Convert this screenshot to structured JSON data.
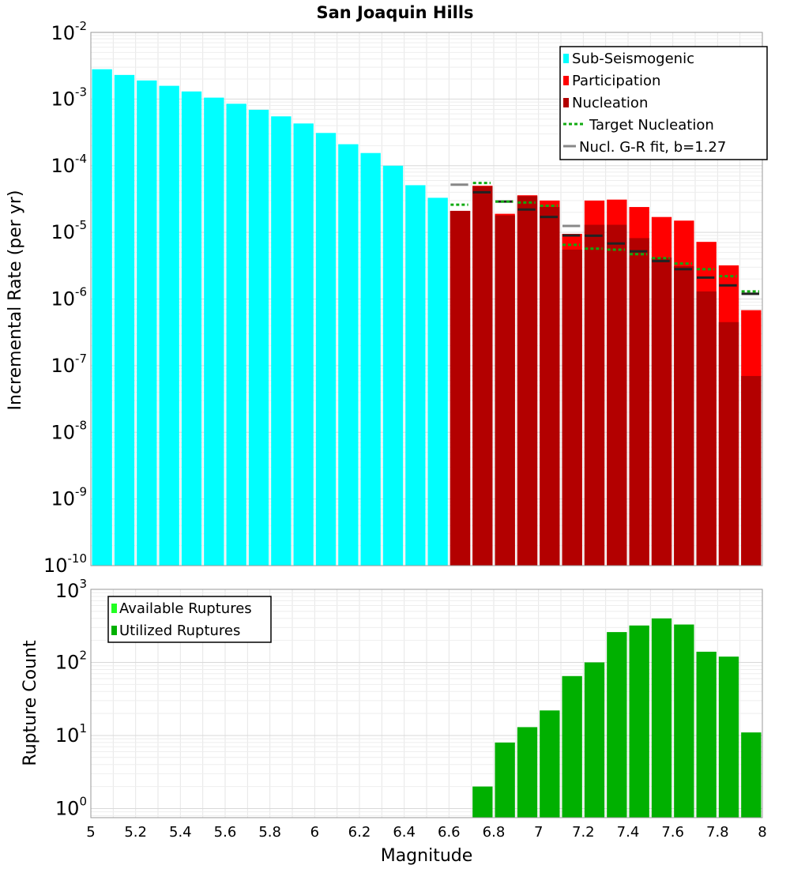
{
  "chart_data": [
    {
      "type": "bar",
      "title": "San Joaquin Hills",
      "ylabel": "Incremental Rate (per yr)",
      "xlim": [
        5,
        8
      ],
      "ylim": [
        1e-10,
        0.01
      ],
      "y_scale": "log",
      "y_ticks": [
        {
          "base": "10",
          "exp": "-2",
          "value": 0.01
        },
        {
          "base": "10",
          "exp": "-3",
          "value": 0.001
        },
        {
          "base": "10",
          "exp": "-4",
          "value": 0.0001
        },
        {
          "base": "10",
          "exp": "-5",
          "value": 1e-05
        },
        {
          "base": "10",
          "exp": "-6",
          "value": 1e-06
        },
        {
          "base": "10",
          "exp": "-7",
          "value": 1e-07
        },
        {
          "base": "10",
          "exp": "-8",
          "value": 1e-08
        },
        {
          "base": "10",
          "exp": "-9",
          "value": 1e-09
        },
        {
          "base": "10",
          "exp": "-10",
          "value": 1e-10
        }
      ],
      "legend_position": "top-right",
      "legend": [
        "Sub-Seismogenic",
        "Participation",
        "Nucleation",
        "Target Nucleation",
        "Nucl. G-R fit, b=1.27"
      ],
      "colors": {
        "sub_seismogenic": "#00ffff",
        "participation": "#ff0000",
        "nucleation": "#b30000",
        "target": "#11aa11",
        "gr_fit": "#888888",
        "marker": "#222222"
      },
      "sub_seismogenic": {
        "x": [
          5.05,
          5.15,
          5.25,
          5.35,
          5.45,
          5.55,
          5.65,
          5.75,
          5.85,
          5.95,
          6.05,
          6.15,
          6.25,
          6.35,
          6.45,
          6.55
        ],
        "values": [
          0.0028,
          0.0023,
          0.0019,
          0.00158,
          0.0013,
          0.00105,
          0.00085,
          0.00069,
          0.00055,
          0.00043,
          0.00031,
          0.00021,
          0.000155,
          0.0001,
          5.1e-05,
          3.3e-05
        ]
      },
      "participation": {
        "x": [
          6.65,
          6.75,
          6.85,
          6.95,
          7.05,
          7.15,
          7.25,
          7.35,
          7.45,
          7.55,
          7.65,
          7.75,
          7.85,
          7.95
        ],
        "values": [
          2.1e-05,
          5e-05,
          1.9e-05,
          3.6e-05,
          3e-05,
          9.5e-06,
          3e-05,
          3.1e-05,
          2.4e-05,
          1.7e-05,
          1.5e-05,
          7.2e-06,
          3.2e-06,
          6.8e-07
        ]
      },
      "nucleation": {
        "x": [
          6.65,
          6.75,
          6.85,
          6.95,
          7.05,
          7.15,
          7.25,
          7.35,
          7.45,
          7.55,
          7.65,
          7.75,
          7.85,
          7.95
        ],
        "values": [
          2.1e-05,
          4.9e-05,
          1.8e-05,
          3.5e-05,
          2.4e-05,
          5.5e-06,
          1.3e-05,
          1.3e-05,
          8.2e-06,
          4.2e-06,
          3.1e-06,
          1.3e-06,
          4.5e-07,
          7e-08
        ]
      },
      "target_nucleation": {
        "x": [
          6.65,
          6.75,
          6.85,
          6.95,
          7.05,
          7.15,
          7.25,
          7.35,
          7.45,
          7.55,
          7.65,
          7.75,
          7.85,
          7.95
        ],
        "values": [
          2.6e-05,
          5.5e-05,
          2.9e-05,
          2.8e-05,
          2.5e-05,
          6.5e-06,
          5.7e-06,
          5.5e-06,
          4.7e-06,
          4.1e-06,
          3.4e-06,
          2.8e-06,
          2.2e-06,
          1.3e-06
        ]
      },
      "nucleation_markers": {
        "x": [
          6.75,
          6.85,
          6.95,
          7.05,
          7.15,
          7.25,
          7.35,
          7.45,
          7.55,
          7.65,
          7.75,
          7.85,
          7.95
        ],
        "values": [
          4e-05,
          2.9e-05,
          2.2e-05,
          1.7e-05,
          9e-06,
          8.9e-06,
          6.8e-06,
          5.2e-06,
          3.7e-06,
          2.8e-06,
          2.1e-06,
          1.6e-06,
          1.2e-06
        ]
      },
      "gr_fit": {
        "x": [
          6.65,
          7.15,
          7.95
        ],
        "values": [
          5.2e-05,
          1.25e-05,
          1.2e-06
        ]
      }
    },
    {
      "type": "bar",
      "title": "",
      "xlabel": "Magnitude",
      "ylabel": "Rupture Count",
      "xlim": [
        5,
        8
      ],
      "ylim": [
        0.75,
        1000
      ],
      "y_scale": "log",
      "x_ticks": [
        "5",
        "5.2",
        "5.4",
        "5.6",
        "5.8",
        "6",
        "6.2",
        "6.4",
        "6.6",
        "6.8",
        "7",
        "7.2",
        "7.4",
        "7.6",
        "7.8",
        "8"
      ],
      "y_ticks": [
        {
          "base": "10",
          "exp": "3",
          "value": 1000
        },
        {
          "base": "10",
          "exp": "2",
          "value": 100
        },
        {
          "base": "10",
          "exp": "1",
          "value": 10
        },
        {
          "base": "10",
          "exp": "0",
          "value": 1
        }
      ],
      "legend_position": "top-left",
      "legend": [
        "Available Ruptures",
        "Utilized Ruptures"
      ],
      "colors": {
        "available": "#22ff22",
        "utilized": "#00b000"
      },
      "utilized": {
        "x": [
          6.75,
          6.85,
          6.95,
          7.05,
          7.15,
          7.25,
          7.35,
          7.45,
          7.55,
          7.65,
          7.75,
          7.85,
          7.95
        ],
        "values": [
          2,
          8,
          13,
          22,
          65,
          100,
          260,
          320,
          400,
          330,
          140,
          120,
          11
        ]
      }
    }
  ]
}
